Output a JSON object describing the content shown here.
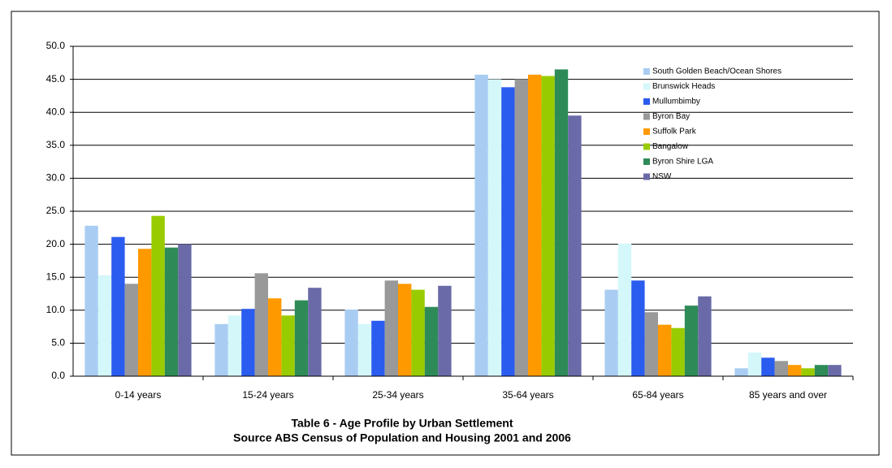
{
  "chart_data": {
    "type": "bar",
    "title": "Table 6 - Age Profile by Urban Settlement",
    "subtitle": "Source ABS Census of Population and Housing 2001 and 2006",
    "categories": [
      "0-14 years",
      "15-24 years",
      "25-34 years",
      "35-64 years",
      "65-84 years",
      "85 years and over"
    ],
    "series": [
      {
        "name": "South Golden Beach/Ocean Shores",
        "color": "#a9cdf2",
        "values": [
          22.8,
          7.9,
          10.1,
          45.7,
          13.1,
          1.2
        ]
      },
      {
        "name": "Brunswick Heads",
        "color": "#d4f7fa",
        "values": [
          15.3,
          9.2,
          7.9,
          45.0,
          20.1,
          3.6
        ]
      },
      {
        "name": "Mullumbimby",
        "color": "#2b5cf0",
        "values": [
          21.1,
          10.2,
          8.4,
          43.8,
          14.5,
          2.8
        ]
      },
      {
        "name": "Byron Bay",
        "color": "#999999",
        "values": [
          14.0,
          15.6,
          14.5,
          45.0,
          9.7,
          2.3
        ]
      },
      {
        "name": "Suffolk Park",
        "color": "#ff9900",
        "values": [
          19.3,
          11.8,
          14.0,
          45.7,
          7.8,
          1.7
        ]
      },
      {
        "name": "Bangalow",
        "color": "#99cc00",
        "values": [
          24.3,
          9.2,
          13.1,
          45.5,
          7.3,
          1.2
        ]
      },
      {
        "name": "Byron Shire LGA",
        "color": "#2e8b57",
        "values": [
          19.5,
          11.5,
          10.5,
          46.5,
          10.7,
          1.7
        ]
      },
      {
        "name": "NSW",
        "color": "#6a6aa8",
        "values": [
          20.0,
          13.4,
          13.7,
          39.5,
          12.1,
          1.7
        ]
      }
    ],
    "ylim": [
      0,
      50
    ],
    "yticks": [
      {
        "value": 0,
        "label": "0.0"
      },
      {
        "value": 5,
        "label": "5.0"
      },
      {
        "value": 10,
        "label": "10.0"
      },
      {
        "value": 15,
        "label": "15.0"
      },
      {
        "value": 20,
        "label": "20.0"
      },
      {
        "value": 25,
        "label": "25.0"
      },
      {
        "value": 30,
        "label": "30.0"
      },
      {
        "value": 35,
        "label": "35.0"
      },
      {
        "value": 40,
        "label": "40.0"
      },
      {
        "value": 45,
        "label": "45.0"
      },
      {
        "value": 50,
        "label": "50.0"
      }
    ],
    "grid": true,
    "legend": "top-right"
  }
}
